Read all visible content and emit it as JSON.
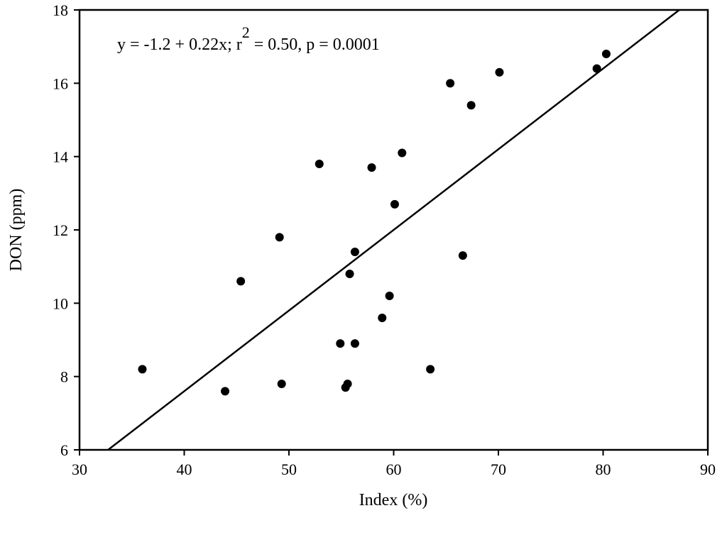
{
  "chart_data": {
    "type": "scatter",
    "title": "",
    "xlabel": "Index (%)",
    "ylabel": "DON (ppm)",
    "xlim": [
      30,
      90
    ],
    "ylim": [
      6,
      18
    ],
    "xticks": [
      "30",
      "40",
      "50",
      "60",
      "70",
      "80",
      "90"
    ],
    "yticks": [
      "6",
      "8",
      "10",
      "12",
      "14",
      "16",
      "18"
    ],
    "grid": false,
    "legend": "none",
    "points": [
      {
        "x": 36.0,
        "y": 8.2
      },
      {
        "x": 43.9,
        "y": 7.6
      },
      {
        "x": 45.4,
        "y": 10.6
      },
      {
        "x": 49.1,
        "y": 11.8
      },
      {
        "x": 49.3,
        "y": 7.8
      },
      {
        "x": 52.9,
        "y": 13.8
      },
      {
        "x": 54.9,
        "y": 8.9
      },
      {
        "x": 55.4,
        "y": 7.7
      },
      {
        "x": 55.6,
        "y": 7.8
      },
      {
        "x": 55.8,
        "y": 10.8
      },
      {
        "x": 56.3,
        "y": 11.4
      },
      {
        "x": 56.3,
        "y": 8.9
      },
      {
        "x": 57.9,
        "y": 13.7
      },
      {
        "x": 58.9,
        "y": 9.6
      },
      {
        "x": 59.6,
        "y": 10.2
      },
      {
        "x": 60.1,
        "y": 12.7
      },
      {
        "x": 60.8,
        "y": 14.1
      },
      {
        "x": 63.5,
        "y": 8.2
      },
      {
        "x": 65.4,
        "y": 16.0
      },
      {
        "x": 66.6,
        "y": 11.3
      },
      {
        "x": 67.4,
        "y": 15.4
      },
      {
        "x": 70.1,
        "y": 16.3
      },
      {
        "x": 79.4,
        "y": 16.4
      },
      {
        "x": 80.3,
        "y": 16.8
      }
    ],
    "fit_line": {
      "intercept": -1.2,
      "slope": 0.22
    },
    "annotation": {
      "main": "y = -1.2 + 0.22x; r",
      "superscript": "2",
      "rest": " = 0.50, p = 0.0001"
    },
    "colors": {
      "marker": "#000000",
      "line": "#000000",
      "axes": "#000000"
    }
  }
}
